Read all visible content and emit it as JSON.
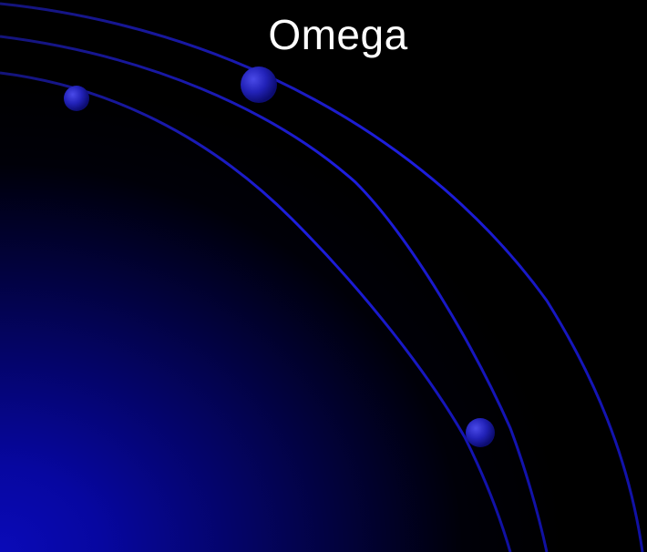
{
  "slide": {
    "title": "Omega"
  },
  "theme": {
    "background": "#000000",
    "glow_color": "#0a0ab8",
    "arc_color": "#1a1ad6",
    "orb_color": "#2a2ad0",
    "title_color": "#ffffff"
  }
}
